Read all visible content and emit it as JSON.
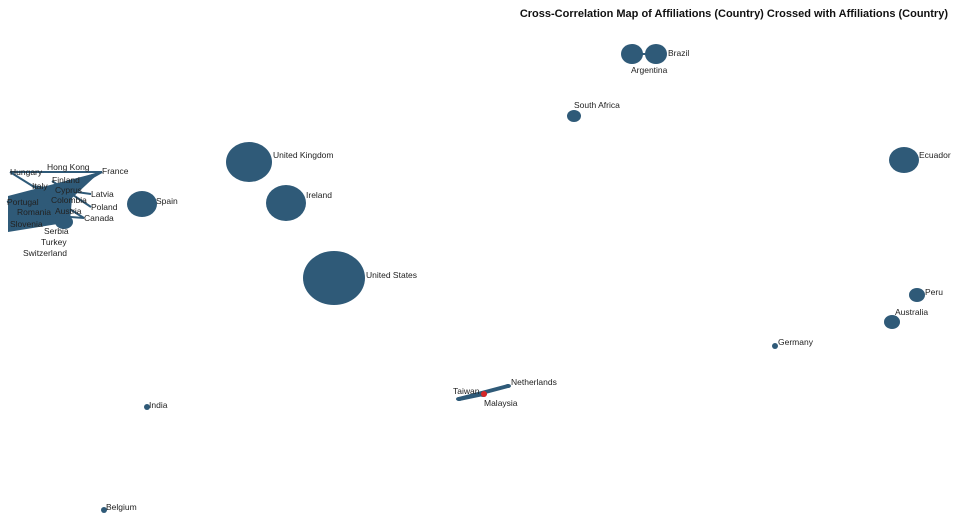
{
  "title": "Cross-Correlation Map of Affiliations (Country) Crossed with Affiliations (Country)",
  "colors": {
    "node": "#2f5a78",
    "edge": "#2f5a78",
    "highlight": "#d62728"
  },
  "nodes": [
    {
      "id": "argentina",
      "label": "Argentina"
    },
    {
      "id": "brazil",
      "label": "Brazil"
    },
    {
      "id": "south-africa",
      "label": "South Africa"
    },
    {
      "id": "united-kingdom",
      "label": "United Kingdom"
    },
    {
      "id": "ireland",
      "label": "Ireland"
    },
    {
      "id": "spain",
      "label": "Spain"
    },
    {
      "id": "united-states",
      "label": "United States"
    },
    {
      "id": "ecuador",
      "label": "Ecuador"
    },
    {
      "id": "peru",
      "label": "Peru"
    },
    {
      "id": "australia",
      "label": "Australia"
    },
    {
      "id": "germany",
      "label": "Germany"
    },
    {
      "id": "netherlands",
      "label": "Netherlands"
    },
    {
      "id": "taiwan",
      "label": "Taiwan"
    },
    {
      "id": "malaysia",
      "label": "Malaysia"
    },
    {
      "id": "india",
      "label": "India"
    },
    {
      "id": "belgium",
      "label": "Belgium"
    },
    {
      "id": "hungary",
      "label": "Hungary"
    },
    {
      "id": "hong-kong",
      "label": "Hong Kong"
    },
    {
      "id": "france",
      "label": "France"
    },
    {
      "id": "finland",
      "label": "Finland"
    },
    {
      "id": "italy",
      "label": "Italy"
    },
    {
      "id": "cyprus",
      "label": "Cyprus"
    },
    {
      "id": "latvia",
      "label": "Latvia"
    },
    {
      "id": "portugal",
      "label": "Portugal"
    },
    {
      "id": "colombia",
      "label": "Colombia"
    },
    {
      "id": "poland",
      "label": "Poland"
    },
    {
      "id": "romania",
      "label": "Romania"
    },
    {
      "id": "austria",
      "label": "Austria"
    },
    {
      "id": "canada",
      "label": "Canada"
    },
    {
      "id": "slovenia",
      "label": "Slovenia"
    },
    {
      "id": "serbia",
      "label": "Serbia"
    },
    {
      "id": "turkey",
      "label": "Turkey"
    },
    {
      "id": "switzerland",
      "label": "Switzerland"
    }
  ],
  "edges": [
    [
      "argentina",
      "brazil"
    ],
    [
      "taiwan",
      "netherlands"
    ],
    [
      "taiwan",
      "malaysia"
    ],
    [
      "hungary",
      "france"
    ],
    [
      "hungary",
      "canada"
    ],
    [
      "portugal",
      "france"
    ],
    [
      "slovenia",
      "france"
    ],
    [
      "romania",
      "canada"
    ],
    [
      "italy",
      "latvia"
    ],
    [
      "finland",
      "poland"
    ]
  ]
}
